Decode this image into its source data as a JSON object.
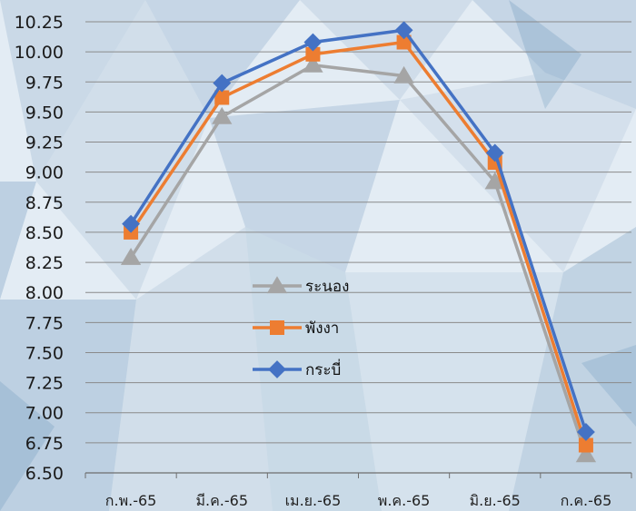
{
  "chart_data": {
    "type": "line",
    "title": "",
    "xlabel": "",
    "ylabel": "",
    "categories": [
      "ก.พ.-65",
      "มี.ค.-65",
      "เม.ย.-65",
      "พ.ค.-65",
      "มิ.ย.-65",
      "ก.ค.-65"
    ],
    "ylim": [
      6.5,
      10.25
    ],
    "yticks": [
      "6.50",
      "6.75",
      "7.00",
      "7.25",
      "7.50",
      "7.75",
      "8.00",
      "8.25",
      "8.50",
      "8.75",
      "9.00",
      "9.25",
      "9.50",
      "9.75",
      "10.00",
      "10.25"
    ],
    "grid": true,
    "legend_position": "center",
    "series": [
      {
        "name": "ระนอง",
        "marker": "triangle",
        "color": "#A5A5A5",
        "values": [
          8.29,
          9.46,
          9.89,
          9.8,
          8.92,
          6.65
        ]
      },
      {
        "name": "พังงา",
        "marker": "square",
        "color": "#ED7D31",
        "values": [
          8.5,
          9.62,
          9.98,
          10.08,
          9.08,
          6.73
        ]
      },
      {
        "name": "กระบี่",
        "marker": "diamond",
        "color": "#4472C4",
        "values": [
          8.57,
          9.74,
          10.08,
          10.18,
          9.16,
          6.84
        ]
      }
    ]
  },
  "background_colors": {
    "light": "#E3ECF4",
    "mid": "#B7CBDD",
    "dark": "#8FAFCB"
  }
}
